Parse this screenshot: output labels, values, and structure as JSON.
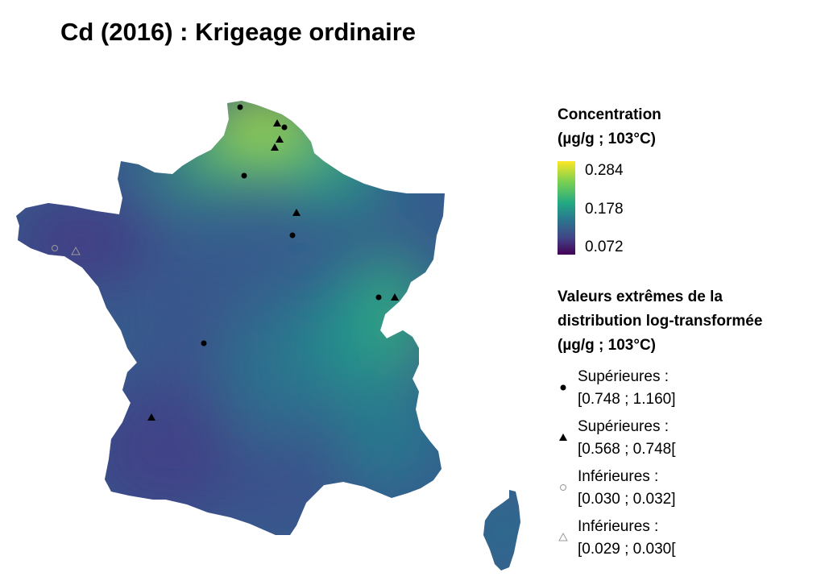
{
  "title": "Cd (2016) : Krigeage ordinaire",
  "legend_concentration": {
    "title_line1": "Concentration",
    "title_line2": "(µg/g ; 103°C)",
    "ticks": [
      "0.284",
      "0.178",
      "0.072"
    ],
    "colors": [
      "#fde725",
      "#7ad151",
      "#22a884",
      "#2a788e",
      "#414487",
      "#440154"
    ]
  },
  "legend_extremes": {
    "title_line1": "Valeurs extrêmes de la",
    "title_line2": "distribution log-transformée",
    "title_line3": "(µg/g ; 103°C)",
    "items": [
      {
        "symbol": "filled-circle",
        "line1": "Supérieures :",
        "line2": "[0.748 ; 1.160]"
      },
      {
        "symbol": "filled-triangle",
        "line1": "Supérieures :",
        "line2": "[0.568 ; 0.748["
      },
      {
        "symbol": "open-circle",
        "line1": "Inférieures :",
        "line2": "[0.030 ; 0.032]"
      },
      {
        "symbol": "open-triangle",
        "line1": "Inférieures :",
        "line2": "[0.029 ; 0.030["
      }
    ]
  }
}
